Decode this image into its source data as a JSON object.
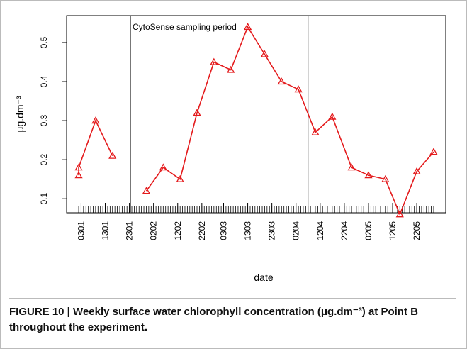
{
  "chart_data": {
    "type": "line",
    "annotation": "CytoSense sampling period",
    "ylabel": "μg.dm⁻³",
    "xlabel": "date",
    "caption": "FIGURE 10 | Weekly surface water chlorophyll concentration (μg.dm⁻³) at Point B throughout the experiment.",
    "x": [
      2,
      2,
      9,
      16,
      23,
      30,
      37,
      44,
      51,
      58,
      65,
      72,
      79,
      86,
      93,
      100,
      107,
      115,
      122,
      129,
      135,
      142,
      149
    ],
    "series": [
      {
        "color": "#e41a1c",
        "values": [
          0.16,
          0.18,
          0.3,
          0.21,
          null,
          0.12,
          0.18,
          0.15,
          0.32,
          0.45,
          0.43,
          0.54,
          0.47,
          0.4,
          0.38,
          0.27,
          0.31,
          0.18,
          0.16,
          0.15,
          0.06,
          0.17,
          0.22
        ]
      }
    ],
    "xlim": [
      -3,
      154
    ],
    "ylim": [
      0.064,
      0.569
    ],
    "yticks": [
      0.1,
      0.2,
      0.3,
      0.4,
      0.5
    ],
    "xticks": [
      {
        "value": 3,
        "label": "0301"
      },
      {
        "value": 13,
        "label": "1301"
      },
      {
        "value": 23,
        "label": "2301"
      },
      {
        "value": 33,
        "label": "0202"
      },
      {
        "value": 43,
        "label": "1202"
      },
      {
        "value": 53,
        "label": "2202"
      },
      {
        "value": 62,
        "label": "0303"
      },
      {
        "value": 72,
        "label": "1303"
      },
      {
        "value": 82,
        "label": "2303"
      },
      {
        "value": 92,
        "label": "0204"
      },
      {
        "value": 102,
        "label": "1204"
      },
      {
        "value": 112,
        "label": "2204"
      },
      {
        "value": 122,
        "label": "0205"
      },
      {
        "value": 132,
        "label": "1205"
      },
      {
        "value": 142,
        "label": "2205"
      }
    ],
    "xminorticks": [
      2,
      3,
      4,
      5,
      6,
      7,
      8,
      9,
      10,
      11,
      12,
      13,
      14,
      15,
      16,
      17,
      18,
      19,
      20,
      21,
      22,
      23,
      24,
      25,
      26,
      27,
      28,
      29,
      30,
      31,
      32,
      33,
      34,
      35,
      36,
      37,
      38,
      39,
      40,
      41,
      42,
      43,
      44,
      45,
      46,
      47,
      48,
      49,
      50,
      51,
      52,
      53,
      54,
      55,
      56,
      57,
      58,
      59,
      60,
      61,
      62,
      63,
      64,
      65,
      66,
      67,
      68,
      69,
      70,
      71,
      72,
      73,
      74,
      75,
      76,
      77,
      78,
      79,
      80,
      81,
      82,
      83,
      84,
      85,
      86,
      87,
      88,
      89,
      90,
      91,
      92,
      93,
      94,
      95,
      96,
      97,
      98,
      99,
      100,
      101,
      102,
      103,
      104,
      105,
      106,
      107,
      108,
      109,
      110,
      111,
      112,
      113,
      114,
      115,
      116,
      117,
      118,
      119,
      120,
      121,
      122,
      123,
      124,
      125,
      126,
      127,
      128,
      129,
      130,
      131,
      132,
      133,
      134,
      135,
      136,
      137,
      138,
      139,
      140,
      141,
      142,
      143,
      144,
      145,
      146,
      147,
      148,
      149
    ],
    "vlines": [
      23.5,
      97
    ],
    "marker": "triangle"
  }
}
